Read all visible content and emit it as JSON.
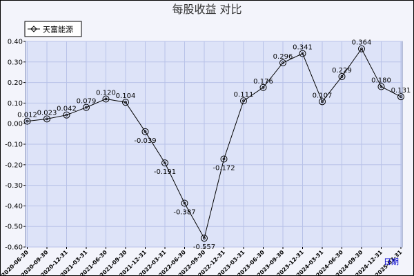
{
  "chart_data": {
    "type": "line",
    "title": "每股收益  对比",
    "legend": {
      "position": "top-left",
      "entries": [
        "天富能源"
      ]
    },
    "xlabel": "日期",
    "ylabel": "",
    "ylim": [
      -0.6,
      0.4
    ],
    "yticks": [
      "0.40",
      "0.30",
      "0.20",
      "0.10",
      "0.00",
      "-0.10",
      "-0.20",
      "-0.30",
      "-0.40",
      "-0.50",
      "-0.60"
    ],
    "grid": true,
    "categories": [
      "2020-06-30",
      "2020-09-30",
      "2020-12-31",
      "2021-03-31",
      "2021-06-30",
      "2021-09-30",
      "2021-12-31",
      "2022-03-31",
      "2022-06-30",
      "2022-09-30",
      "2022-12-31",
      "2023-03-31",
      "2023-06-30",
      "2023-09-30",
      "2023-12-31",
      "2024-03-31",
      "2024-06-30",
      "2024-09-30",
      "2024-12-31",
      "2025-03-31"
    ],
    "series": [
      {
        "name": "天富能源",
        "values": [
          0.012,
          0.023,
          0.042,
          0.079,
          0.12,
          0.104,
          -0.039,
          -0.191,
          -0.387,
          -0.557,
          -0.172,
          0.111,
          0.176,
          0.296,
          0.341,
          0.107,
          0.229,
          0.364,
          0.18,
          0.131
        ],
        "labels": [
          "0.012",
          "0.023",
          "0.042",
          "0.079",
          "0.120",
          "0.104",
          "-0.039",
          "-0.191",
          "-0.387",
          "-0.557",
          "-0.172",
          "0.111",
          "0.176",
          "0.296",
          "0.341",
          "0.107",
          "0.229",
          "0.364",
          "0.180",
          "0.131"
        ]
      }
    ],
    "colors": {
      "line": "#000000",
      "plot_background": "#dde3f8",
      "grid": "#b8c2e8",
      "frame_background": "#f3f4fb",
      "xlabel": "#0000cc"
    }
  }
}
